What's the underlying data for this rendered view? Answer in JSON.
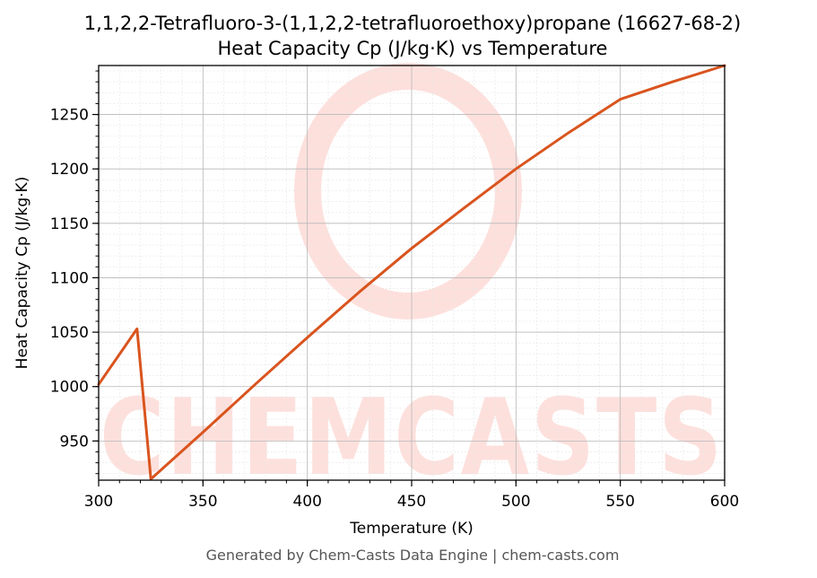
{
  "chart_data": {
    "type": "line",
    "title_line1": "1,1,2,2-Tetrafluoro-3-(1,1,2,2-tetrafluoroethoxy)propane (16627-68-2)",
    "title_line2": "Heat Capacity Cp (J/kg·K) vs Temperature",
    "xlabel": "Temperature (K)",
    "ylabel": "Heat Capacity Cp (J/kg·K)",
    "xlim": [
      300,
      600
    ],
    "ylim": [
      914,
      1295
    ],
    "xticks": [
      300,
      350,
      400,
      450,
      500,
      550,
      600
    ],
    "yticks": [
      950,
      1000,
      1050,
      1100,
      1150,
      1200,
      1250
    ],
    "grid": true,
    "series": [
      {
        "color": "#d9541e",
        "x": [
          300,
          318.4,
          324,
          325,
          350,
          375,
          400,
          425,
          450,
          475,
          500,
          525,
          550,
          575,
          600
        ],
        "y": [
          1002,
          1053,
          937,
          915,
          958,
          1002,
          1045,
          1087,
          1127,
          1164,
          1200,
          1233,
          1264,
          1280,
          1295
        ]
      }
    ]
  },
  "watermark": {
    "text": "CHEMCASTS",
    "color": "#fde0dc"
  },
  "footer": "Generated by Chem-Casts Data Engine | chem-casts.com"
}
